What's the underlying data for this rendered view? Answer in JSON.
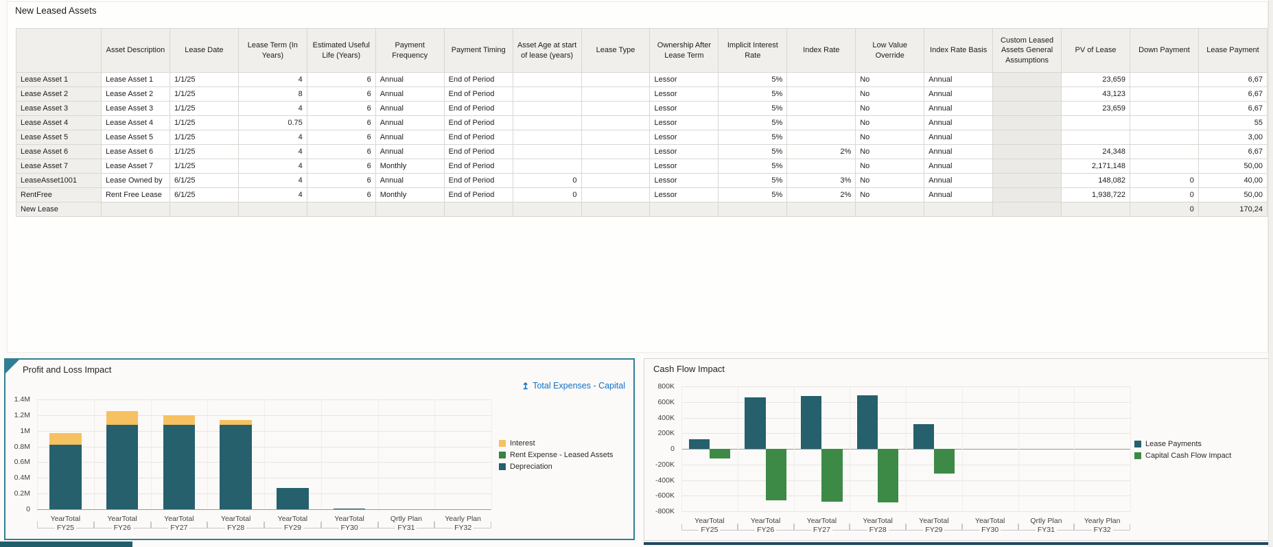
{
  "form": {
    "title": "New Leased Assets",
    "columns": [
      {
        "label": "",
        "align": "left"
      },
      {
        "label": "Asset Description",
        "align": "left"
      },
      {
        "label": "Lease Date",
        "align": "left"
      },
      {
        "label": "Lease Term (In Years)",
        "align": "right"
      },
      {
        "label": "Estimated Useful Life (Years)",
        "align": "right"
      },
      {
        "label": "Payment Frequency",
        "align": "left"
      },
      {
        "label": "Payment Timing",
        "align": "left"
      },
      {
        "label": "Asset Age at start of lease (years)",
        "align": "right"
      },
      {
        "label": "Lease Type",
        "align": "left"
      },
      {
        "label": "Ownership After Lease Term",
        "align": "left"
      },
      {
        "label": "Implicit Interest Rate",
        "align": "right"
      },
      {
        "label": "Index Rate",
        "align": "right"
      },
      {
        "label": "Low Value Override",
        "align": "left"
      },
      {
        "label": "Index Rate Basis",
        "align": "left"
      },
      {
        "label": "Custom Leased Assets General Assumptions",
        "align": "left",
        "disabled": true
      },
      {
        "label": "PV of Lease",
        "align": "right"
      },
      {
        "label": "Down Payment",
        "align": "right"
      },
      {
        "label": "Lease Payment",
        "align": "right"
      }
    ],
    "rows": [
      {
        "header": "Lease Asset 1",
        "cells": [
          "Lease Asset 1",
          "1/1/25",
          "4",
          "6",
          "Annual",
          "End of Period",
          "",
          "",
          "Lessor",
          "5%",
          "",
          "No",
          "Annual",
          "",
          "23,659",
          "",
          "6,67"
        ]
      },
      {
        "header": "Lease Asset 2",
        "cells": [
          "Lease Asset 2",
          "1/1/25",
          "8",
          "6",
          "Annual",
          "End of Period",
          "",
          "",
          "Lessor",
          "5%",
          "",
          "No",
          "Annual",
          "",
          "43,123",
          "",
          "6,67"
        ]
      },
      {
        "header": "Lease Asset 3",
        "cells": [
          "Lease Asset 3",
          "1/1/25",
          "4",
          "6",
          "Annual",
          "End of Period",
          "",
          "",
          "Lessor",
          "5%",
          "",
          "No",
          "Annual",
          "",
          "23,659",
          "",
          "6,67"
        ]
      },
      {
        "header": "Lease Asset 4",
        "cells": [
          "Lease Asset 4",
          "1/1/25",
          "0.75",
          "6",
          "Annual",
          "End of Period",
          "",
          "",
          "Lessor",
          "5%",
          "",
          "No",
          "Annual",
          "",
          "",
          "",
          "55"
        ]
      },
      {
        "header": "Lease Asset 5",
        "cells": [
          "Lease Asset 5",
          "1/1/25",
          "4",
          "6",
          "Annual",
          "End of Period",
          "",
          "",
          "Lessor",
          "5%",
          "",
          "No",
          "Annual",
          "",
          "",
          "",
          "3,00"
        ]
      },
      {
        "header": "Lease Asset 6",
        "cells": [
          "Lease Asset 6",
          "1/1/25",
          "4",
          "6",
          "Annual",
          "End of Period",
          "",
          "",
          "Lessor",
          "5%",
          "2%",
          "No",
          "Annual",
          "",
          "24,348",
          "",
          "6,67"
        ]
      },
      {
        "header": "Lease Asset 7",
        "cells": [
          "Lease Asset 7",
          "1/1/25",
          "4",
          "6",
          "Monthly",
          "End of Period",
          "",
          "",
          "Lessor",
          "5%",
          "",
          "No",
          "Annual",
          "",
          "2,171,148",
          "",
          "50,00"
        ]
      },
      {
        "header": "LeaseAsset1001",
        "cells": [
          "Lease Owned by",
          "6/1/25",
          "4",
          "6",
          "Annual",
          "End of Period",
          "0",
          "",
          "Lessor",
          "5%",
          "3%",
          "No",
          "Annual",
          "",
          "148,082",
          "0",
          "40,00"
        ]
      },
      {
        "header": "RentFree",
        "cells": [
          "Rent Free Lease",
          "6/1/25",
          "4",
          "6",
          "Monthly",
          "End of Period",
          "0",
          "",
          "Lessor",
          "5%",
          "2%",
          "No",
          "Annual",
          "",
          "1,938,722",
          "0",
          "50,00"
        ]
      },
      {
        "header": "New Lease",
        "locked": true,
        "cells": [
          "",
          "",
          "",
          "",
          "",
          "",
          "",
          "",
          "",
          "",
          "",
          "",
          "",
          "",
          "",
          "0",
          "170,24"
        ]
      }
    ]
  },
  "chart_data": [
    {
      "type": "bar",
      "stacked": true,
      "title": "Profit and Loss Impact",
      "drill_link": {
        "icon": "↥",
        "label": "Total Expenses - Capital",
        "color": "#0E72C8"
      },
      "categories": [
        "FY25",
        "FY26",
        "FY27",
        "FY28",
        "FY29",
        "FY30",
        "FY31",
        "FY32"
      ],
      "category_periods": [
        "YearTotal",
        "YearTotal",
        "YearTotal",
        "YearTotal",
        "YearTotal",
        "YearTotal",
        "Qrtly Plan",
        "Yearly Plan"
      ],
      "ylim": [
        0,
        1400000
      ],
      "yticks": [
        "1.4M",
        "1.2M",
        "1M",
        "0.8M",
        "0.6M",
        "0.4M",
        "0.2M",
        "0"
      ],
      "grid": true,
      "legend_position": "right",
      "series": [
        {
          "name": "Interest",
          "color": "#F6C160",
          "values": [
            150000,
            170000,
            120000,
            60000,
            0,
            0,
            0,
            0
          ]
        },
        {
          "name": "Rent Expense - Leased Assets",
          "color": "#38833F",
          "values": [
            0,
            0,
            0,
            0,
            0,
            0,
            0,
            0
          ]
        },
        {
          "name": "Depreciation",
          "color": "#25606C",
          "values": [
            820000,
            1080000,
            1080000,
            1080000,
            270000,
            12000,
            0,
            0
          ]
        }
      ]
    },
    {
      "type": "bar",
      "stacked": false,
      "title": "Cash Flow Impact",
      "categories": [
        "FY25",
        "FY26",
        "FY27",
        "FY28",
        "FY29",
        "FY30",
        "FY31",
        "FY32"
      ],
      "category_periods": [
        "YearTotal",
        "YearTotal",
        "YearTotal",
        "YearTotal",
        "YearTotal",
        "YearTotal",
        "Qrtly Plan",
        "Yearly Plan"
      ],
      "ylim": [
        -800000,
        800000
      ],
      "yticks": [
        "800K",
        "600K",
        "400K",
        "200K",
        "0",
        "-200K",
        "-400K",
        "-600K",
        "-800K"
      ],
      "grid": true,
      "legend_position": "right",
      "series": [
        {
          "name": "Lease Payments",
          "color": "#25606C",
          "values": [
            120000,
            660000,
            675000,
            690000,
            315000,
            0,
            0,
            0
          ]
        },
        {
          "name": "Capital Cash Flow Impact",
          "color": "#3C8A46",
          "values": [
            -125000,
            -660000,
            -680000,
            -690000,
            -315000,
            0,
            0,
            0
          ]
        }
      ]
    }
  ]
}
